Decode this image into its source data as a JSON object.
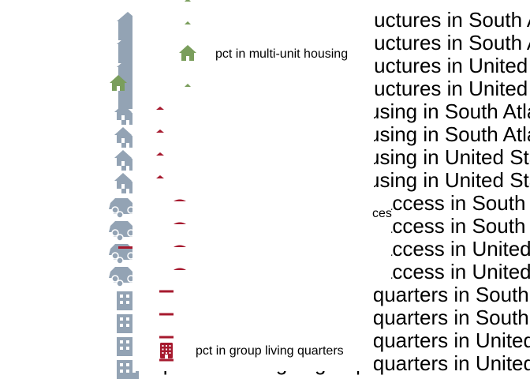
{
  "chart_data": {
    "type": "other",
    "title": "",
    "rows": [
      {
        "label": "Population in multi-unit structures in South Atlantic",
        "icon": "building-icon",
        "marker": "multi-unit"
      },
      {
        "label": "Population in multi-unit structures in South Atlantic",
        "icon": "building-icon",
        "marker": "multi-unit"
      },
      {
        "label": "Population in multi-unit structures in United States",
        "icon": "building-icon",
        "marker": "multi-unit"
      },
      {
        "label": "Population in multi-unit structures in United States",
        "icon": "building-icon",
        "marker": "multi-unit"
      },
      {
        "label": "Population in crowded housing in South Atlantic",
        "icon": "house-icon",
        "marker": "crowded"
      },
      {
        "label": "Population in crowded housing in South Atlantic",
        "icon": "house-icon",
        "marker": "crowded"
      },
      {
        "label": "Population in crowded housing in United States",
        "icon": "house-icon",
        "marker": "crowded"
      },
      {
        "label": "Population in crowded housing in United States",
        "icon": "house-icon",
        "marker": "crowded"
      },
      {
        "label": "Population without vehicle access in South Atlantic",
        "icon": "car-icon",
        "marker": "vehicle"
      },
      {
        "label": "Population without vehicle access in South Atlantic",
        "icon": "car-icon",
        "marker": "vehicle"
      },
      {
        "label": "Population without vehicle access in United States",
        "icon": "car-icon",
        "marker": "vehicle"
      },
      {
        "label": "Population without vehicle access in United States",
        "icon": "car-icon",
        "marker": "vehicle"
      },
      {
        "label": "Population living in group quarters in South Atlantic",
        "icon": "dorm-icon",
        "marker": "group"
      },
      {
        "label": "Population living in group quarters in South Atlantic",
        "icon": "dorm-icon",
        "marker": "group"
      },
      {
        "label": "Population living in group quarters in United States",
        "icon": "dorm-icon",
        "marker": "group"
      },
      {
        "label": "Population living in group quarters in United States",
        "icon": "dorm-icon",
        "marker": "group"
      }
    ],
    "legend": [
      {
        "label": "pct in multi-unit housing",
        "icon": "house-icon",
        "color": "#7a9e5c"
      },
      {
        "label": "pct in group living quarters",
        "icon": "office-building-icon",
        "color": "#a6192e"
      }
    ],
    "stray_text": "ces",
    "colors": {
      "icon_gray": "#93a3b4",
      "green": "#7a9e5c",
      "red": "#a6192e",
      "text": "#000000"
    }
  }
}
